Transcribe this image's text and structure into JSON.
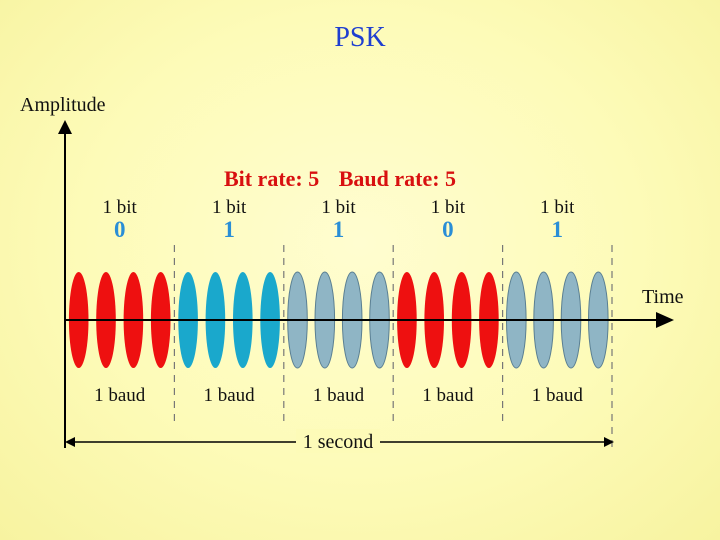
{
  "title": "PSK",
  "axes": {
    "y_label": "Amplitude",
    "x_label": "Time"
  },
  "header": {
    "bit_rate": "Bit rate: 5",
    "baud_rate": "Baud rate: 5"
  },
  "bit_label": "1 bit",
  "baud_label": "1 baud",
  "duration_label": "1 second",
  "bits": [
    0,
    1,
    1,
    0,
    1
  ],
  "segment_colors": [
    "#ee1010",
    "#1aa8cc",
    "#8fb5c5",
    "#ee1010",
    "#8fb5c5"
  ],
  "colors": {
    "bit_value": "#2a8ed6",
    "header": "#d81010",
    "title": "#1f3fd0"
  }
}
